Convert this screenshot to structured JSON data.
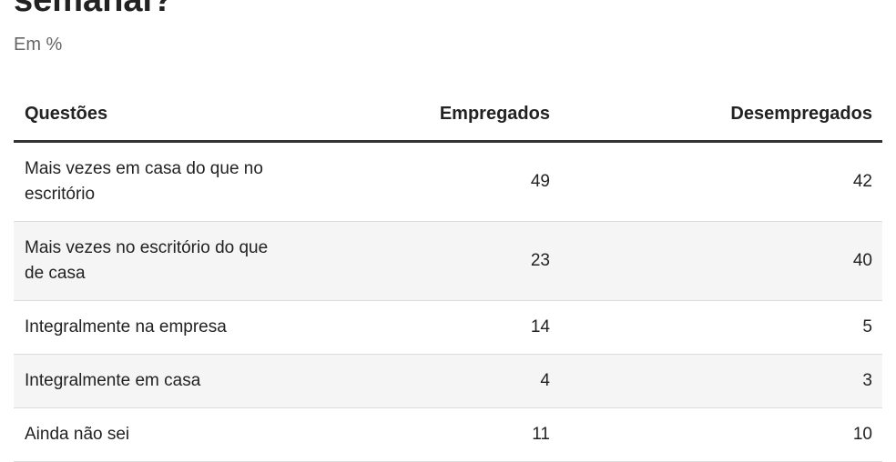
{
  "header": {
    "title": "semanal?",
    "subtitle": "Em %"
  },
  "table": {
    "columns": [
      "Questões",
      "Empregados",
      "Desempregados"
    ],
    "rows": [
      [
        "Mais vezes em casa do que no escritório",
        49,
        42
      ],
      [
        "Mais vezes no escritório do que de casa",
        23,
        40
      ],
      [
        "Integralmente na empresa",
        14,
        5
      ],
      [
        "Integralmente em casa",
        4,
        3
      ],
      [
        "Ainda não sei",
        11,
        10
      ]
    ]
  }
}
